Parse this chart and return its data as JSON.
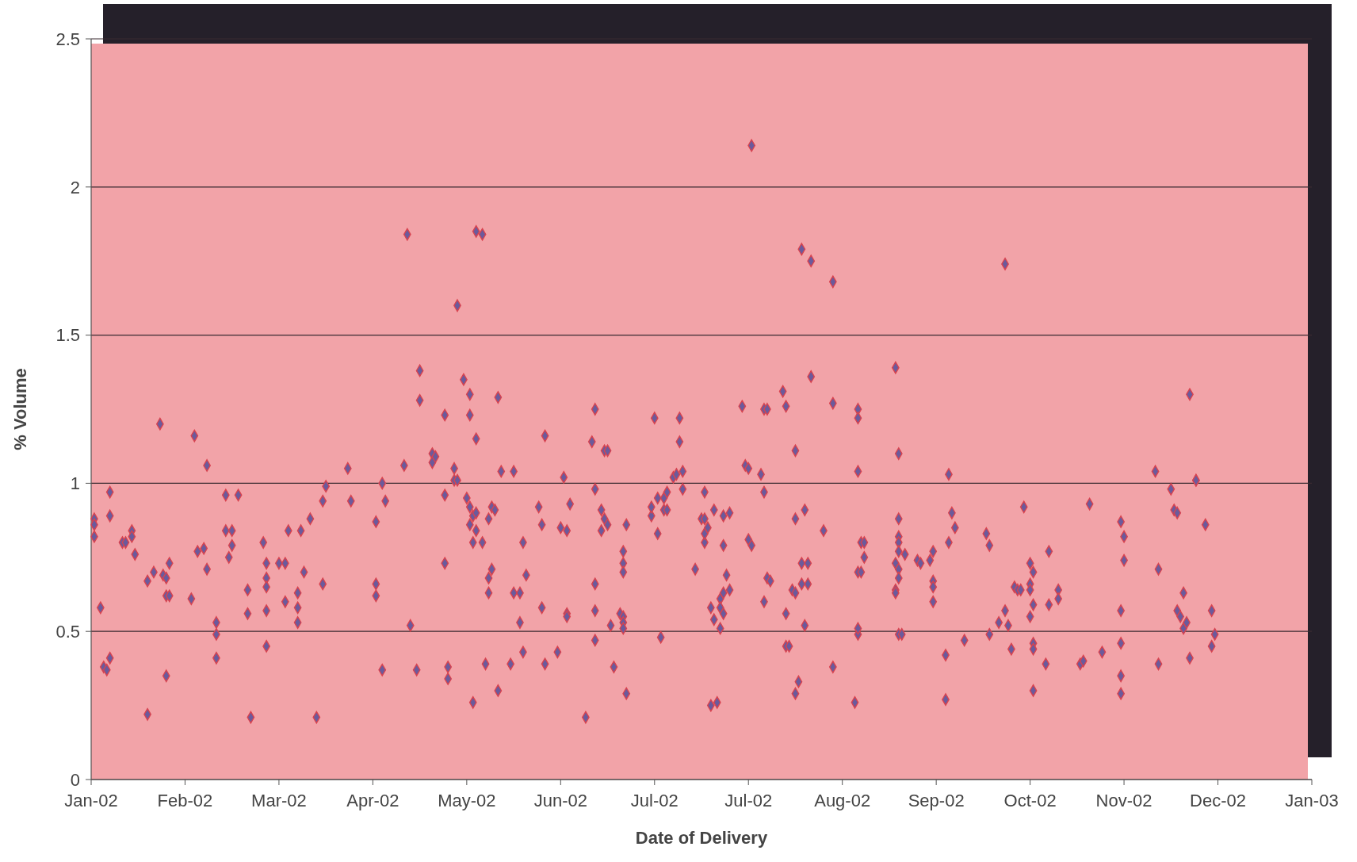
{
  "chart_data": {
    "type": "scatter",
    "xlabel": "Date of Delivery",
    "ylabel": "% Volume",
    "xlim": [
      "2002-01-02",
      "2003-01-27"
    ],
    "xticks": [
      {
        "value": "2002-01-02",
        "label": "Jan-02"
      },
      {
        "value": "2002-02-01",
        "label": "Feb-02"
      },
      {
        "value": "2002-03-03",
        "label": "Mar-02"
      },
      {
        "value": "2002-04-02",
        "label": "Apr-02"
      },
      {
        "value": "2002-05-02",
        "label": "May-02"
      },
      {
        "value": "2002-06-01",
        "label": "Jun-02"
      },
      {
        "value": "2002-07-01",
        "label": "Jul-02"
      },
      {
        "value": "2002-07-31",
        "label": "Jul-02"
      },
      {
        "value": "2002-08-30",
        "label": "Aug-02"
      },
      {
        "value": "2002-09-29",
        "label": "Sep-02"
      },
      {
        "value": "2002-10-29",
        "label": "Oct-02"
      },
      {
        "value": "2002-11-28",
        "label": "Nov-02"
      },
      {
        "value": "2002-12-28",
        "label": "Dec-02"
      },
      {
        "value": "2003-01-27",
        "label": "Jan-03"
      }
    ],
    "ylim": [
      0,
      2.5
    ],
    "yticks": [
      0,
      0.5,
      1,
      1.5,
      2,
      2.5
    ],
    "grid": "y",
    "marker": "diamond",
    "series": [
      {
        "color": "#6b5a9c",
        "x": [
          "2002-01-03",
          "2002-01-03",
          "2002-01-03",
          "2002-01-05",
          "2002-01-06",
          "2002-01-07",
          "2002-01-08",
          "2002-01-08",
          "2002-01-08",
          "2002-01-12",
          "2002-01-13",
          "2002-01-15",
          "2002-01-15",
          "2002-01-16",
          "2002-01-20",
          "2002-01-20",
          "2002-01-22",
          "2002-01-24",
          "2002-01-25",
          "2002-01-26",
          "2002-01-26",
          "2002-01-26",
          "2002-01-27",
          "2002-01-27",
          "2002-02-03",
          "2002-02-04",
          "2002-02-05",
          "2002-02-07",
          "2002-02-08",
          "2002-02-08",
          "2002-02-11",
          "2002-02-11",
          "2002-02-11",
          "2002-02-14",
          "2002-02-18",
          "2002-02-14",
          "2002-02-16",
          "2002-02-16",
          "2002-02-15",
          "2002-02-21",
          "2002-02-21",
          "2002-02-22",
          "2002-02-26",
          "2002-02-27",
          "2002-02-27",
          "2002-02-27",
          "2002-02-27",
          "2002-02-27",
          "2002-03-03",
          "2002-03-05",
          "2002-03-05",
          "2002-03-06",
          "2002-03-09",
          "2002-03-09",
          "2002-03-09",
          "2002-03-10",
          "2002-03-11",
          "2002-03-13",
          "2002-03-15",
          "2002-03-17",
          "2002-03-17",
          "2002-03-18",
          "2002-03-25",
          "2002-03-26",
          "2002-04-03",
          "2002-04-03",
          "2002-04-03",
          "2002-04-05",
          "2002-04-05",
          "2002-04-06",
          "2002-04-12",
          "2002-04-13",
          "2002-04-14",
          "2002-04-16",
          "2002-04-17",
          "2002-04-17",
          "2002-04-21",
          "2002-04-21",
          "2002-04-22",
          "2002-04-25",
          "2002-04-25",
          "2002-04-25",
          "2002-04-26",
          "2002-04-26",
          "2002-04-28",
          "2002-04-28",
          "2002-04-29",
          "2002-04-29",
          "2002-05-01",
          "2002-05-02",
          "2002-05-03",
          "2002-05-03",
          "2002-05-03",
          "2002-05-03",
          "2002-05-04",
          "2002-05-04",
          "2002-05-04",
          "2002-05-05",
          "2002-05-07",
          "2002-05-05",
          "2002-05-05",
          "2002-05-05",
          "2002-05-07",
          "2002-05-08",
          "2002-05-09",
          "2002-05-09",
          "2002-05-09",
          "2002-05-10",
          "2002-05-10",
          "2002-05-11",
          "2002-05-12",
          "2002-05-12",
          "2002-05-13",
          "2002-05-17",
          "2002-05-17",
          "2002-05-19",
          "2002-05-16",
          "2002-05-19",
          "2002-05-20",
          "2002-05-20",
          "2002-05-21",
          "2002-05-25",
          "2002-05-26",
          "2002-05-26",
          "2002-05-27",
          "2002-05-27",
          "2002-05-31",
          "2002-06-01",
          "2002-06-02",
          "2002-06-03",
          "2002-06-03",
          "2002-06-03",
          "2002-06-04",
          "2002-06-09",
          "2002-06-11",
          "2002-06-12",
          "2002-06-12",
          "2002-06-12",
          "2002-06-12",
          "2002-06-12",
          "2002-06-14",
          "2002-06-14",
          "2002-06-15",
          "2002-06-15",
          "2002-06-16",
          "2002-06-16",
          "2002-06-17",
          "2002-06-18",
          "2002-06-20",
          "2002-06-21",
          "2002-06-21",
          "2002-06-21",
          "2002-06-21",
          "2002-06-21",
          "2002-06-21",
          "2002-06-22",
          "2002-06-22",
          "2002-06-30",
          "2002-06-30",
          "2002-07-01",
          "2002-07-02",
          "2002-07-02",
          "2002-07-03",
          "2002-07-04",
          "2002-07-04",
          "2002-07-05",
          "2002-07-05",
          "2002-07-07",
          "2002-07-08",
          "2002-07-09",
          "2002-07-09",
          "2002-07-10",
          "2002-07-10",
          "2002-07-14",
          "2002-07-17",
          "2002-07-16",
          "2002-07-17",
          "2002-07-17",
          "2002-07-17",
          "2002-07-18",
          "2002-07-19",
          "2002-07-19",
          "2002-07-20",
          "2002-07-20",
          "2002-07-21",
          "2002-07-22",
          "2002-07-22",
          "2002-07-22",
          "2002-07-23",
          "2002-07-23",
          "2002-07-23",
          "2002-07-23",
          "2002-07-24",
          "2002-07-25",
          "2002-07-25",
          "2002-07-29",
          "2002-07-30",
          "2002-07-31",
          "2002-07-31",
          "2002-08-01",
          "2002-08-01",
          "2002-08-04",
          "2002-08-05",
          "2002-08-05",
          "2002-08-06",
          "2002-08-06",
          "2002-08-07",
          "2002-08-05",
          "2002-08-11",
          "2002-08-12",
          "2002-08-12",
          "2002-08-13",
          "2002-08-12",
          "2002-08-14",
          "2002-08-15",
          "2002-08-15",
          "2002-08-15",
          "2002-08-15",
          "2002-08-16",
          "2002-08-17",
          "2002-08-20",
          "2002-08-18",
          "2002-08-17",
          "2002-08-19",
          "2002-08-19",
          "2002-08-17",
          "2002-08-18",
          "2002-08-20",
          "2002-08-24",
          "2002-08-27",
          "2002-08-27",
          "2002-08-27",
          "2002-09-03",
          "2002-09-04",
          "2002-09-04",
          "2002-09-04",
          "2002-09-04",
          "2002-09-04",
          "2002-09-04",
          "2002-09-05",
          "2002-09-05",
          "2002-09-06",
          "2002-09-06",
          "2002-09-16",
          "2002-09-17",
          "2002-09-17",
          "2002-09-17",
          "2002-09-17",
          "2002-09-17",
          "2002-09-16",
          "2002-09-17",
          "2002-09-17",
          "2002-09-16",
          "2002-09-16",
          "2002-09-17",
          "2002-09-18",
          "2002-09-19",
          "2002-09-23",
          "2002-09-24",
          "2002-09-27",
          "2002-09-28",
          "2002-09-28",
          "2002-09-28",
          "2002-09-28",
          "2002-10-02",
          "2002-10-02",
          "2002-10-03",
          "2002-10-03",
          "2002-10-04",
          "2002-10-05",
          "2002-10-08",
          "2002-10-15",
          "2002-10-16",
          "2002-10-16",
          "2002-10-19",
          "2002-10-21",
          "2002-10-21",
          "2002-10-22",
          "2002-10-23",
          "2002-10-24",
          "2002-10-25",
          "2002-10-26",
          "2002-10-27",
          "2002-10-29",
          "2002-10-29",
          "2002-10-29",
          "2002-10-29",
          "2002-10-30",
          "2002-10-30",
          "2002-10-30",
          "2002-10-30",
          "2002-10-30",
          "2002-11-03",
          "2002-11-04",
          "2002-11-04",
          "2002-11-07",
          "2002-11-07",
          "2002-11-14",
          "2002-11-15",
          "2002-11-17",
          "2002-11-21",
          "2002-11-27",
          "2002-11-27",
          "2002-11-27",
          "2002-11-28",
          "2002-11-28",
          "2002-11-27",
          "2002-11-27",
          "2002-12-08",
          "2002-12-09",
          "2002-12-09",
          "2002-12-13",
          "2002-12-14",
          "2002-12-15",
          "2002-12-15",
          "2002-12-16",
          "2002-12-17",
          "2002-12-17",
          "2002-12-18",
          "2002-12-19",
          "2002-12-19",
          "2002-12-21",
          "2002-12-21",
          "2002-12-24",
          "2002-12-26",
          "2002-12-26",
          "2002-12-27"
        ],
        "values": [
          0.88,
          0.86,
          0.82,
          0.58,
          0.38,
          0.37,
          0.41,
          0.97,
          0.89,
          0.8,
          0.8,
          0.84,
          0.82,
          0.76,
          0.22,
          0.67,
          0.7,
          1.2,
          0.69,
          0.68,
          0.35,
          0.62,
          0.62,
          0.73,
          0.61,
          1.16,
          0.77,
          0.78,
          1.06,
          0.71,
          0.53,
          0.49,
          0.41,
          0.96,
          0.96,
          0.84,
          0.84,
          0.79,
          0.75,
          0.64,
          0.56,
          0.21,
          0.8,
          0.73,
          0.68,
          0.65,
          0.57,
          0.45,
          0.73,
          0.73,
          0.6,
          0.84,
          0.63,
          0.58,
          0.53,
          0.84,
          0.7,
          0.88,
          0.21,
          0.66,
          0.94,
          0.99,
          1.05,
          0.94,
          0.87,
          0.66,
          0.62,
          1.0,
          0.37,
          0.94,
          1.06,
          1.84,
          0.52,
          0.37,
          1.38,
          1.28,
          1.1,
          1.07,
          1.09,
          1.23,
          0.96,
          0.73,
          0.38,
          0.34,
          1.05,
          1.01,
          1.01,
          1.6,
          1.35,
          0.95,
          1.3,
          1.23,
          0.92,
          0.86,
          0.89,
          0.8,
          0.26,
          1.85,
          1.84,
          1.15,
          0.9,
          0.84,
          0.8,
          0.39,
          0.88,
          0.68,
          0.63,
          0.71,
          0.92,
          0.91,
          1.29,
          0.3,
          1.04,
          1.04,
          0.63,
          0.63,
          0.39,
          0.53,
          0.43,
          0.8,
          0.69,
          0.92,
          0.58,
          0.86,
          1.16,
          0.39,
          0.43,
          0.85,
          1.02,
          0.84,
          0.56,
          0.55,
          0.93,
          0.21,
          1.14,
          0.47,
          1.25,
          0.98,
          0.66,
          0.57,
          0.91,
          0.84,
          0.88,
          1.11,
          1.11,
          0.86,
          0.52,
          0.38,
          0.56,
          0.55,
          0.53,
          0.51,
          0.77,
          0.73,
          0.7,
          0.29,
          0.86,
          0.89,
          0.92,
          1.22,
          0.95,
          0.83,
          0.48,
          0.95,
          0.91,
          0.97,
          0.91,
          1.02,
          1.03,
          1.22,
          1.14,
          1.04,
          0.98,
          0.71,
          0.97,
          0.88,
          0.8,
          0.83,
          0.88,
          0.85,
          0.58,
          0.25,
          0.91,
          0.54,
          0.26,
          0.51,
          0.61,
          0.58,
          0.79,
          0.56,
          0.63,
          0.89,
          0.69,
          0.64,
          0.9,
          1.26,
          1.06,
          1.05,
          0.81,
          0.79,
          2.14,
          1.03,
          0.97,
          1.25,
          1.25,
          0.68,
          0.67,
          0.6,
          1.31,
          1.26,
          0.45,
          0.45,
          0.56,
          0.64,
          1.11,
          0.88,
          0.63,
          0.29,
          0.33,
          1.79,
          1.75,
          0.91,
          0.73,
          0.73,
          0.66,
          0.66,
          0.52,
          1.36,
          0.84,
          1.68,
          1.27,
          0.38,
          0.26,
          1.25,
          0.7,
          0.49,
          1.22,
          1.04,
          0.51,
          0.7,
          0.8,
          0.8,
          0.75,
          1.39,
          0.88,
          1.1,
          0.82,
          0.8,
          0.77,
          0.73,
          0.71,
          0.68,
          0.64,
          0.63,
          0.49,
          0.49,
          0.76,
          0.74,
          0.73,
          0.74,
          0.77,
          0.67,
          0.65,
          0.6,
          0.42,
          0.27,
          1.03,
          0.8,
          0.9,
          0.85,
          0.47,
          0.83,
          0.79,
          0.49,
          0.53,
          1.74,
          0.57,
          0.52,
          0.44,
          0.65,
          0.64,
          0.64,
          0.92,
          0.73,
          0.66,
          0.64,
          0.55,
          0.7,
          0.59,
          0.46,
          0.44,
          0.3,
          0.39,
          0.77,
          0.59,
          0.64,
          0.61,
          0.39,
          0.4,
          0.93,
          0.43,
          0.87,
          0.57,
          0.46,
          0.74,
          0.82,
          0.35,
          0.29,
          1.04,
          0.71,
          0.39,
          0.98,
          0.91,
          0.9,
          0.57,
          0.55,
          0.51,
          0.63,
          0.53,
          1.3,
          0.41,
          1.01,
          1.01,
          0.86,
          0.57,
          0.45,
          0.49
        ]
      }
    ]
  }
}
